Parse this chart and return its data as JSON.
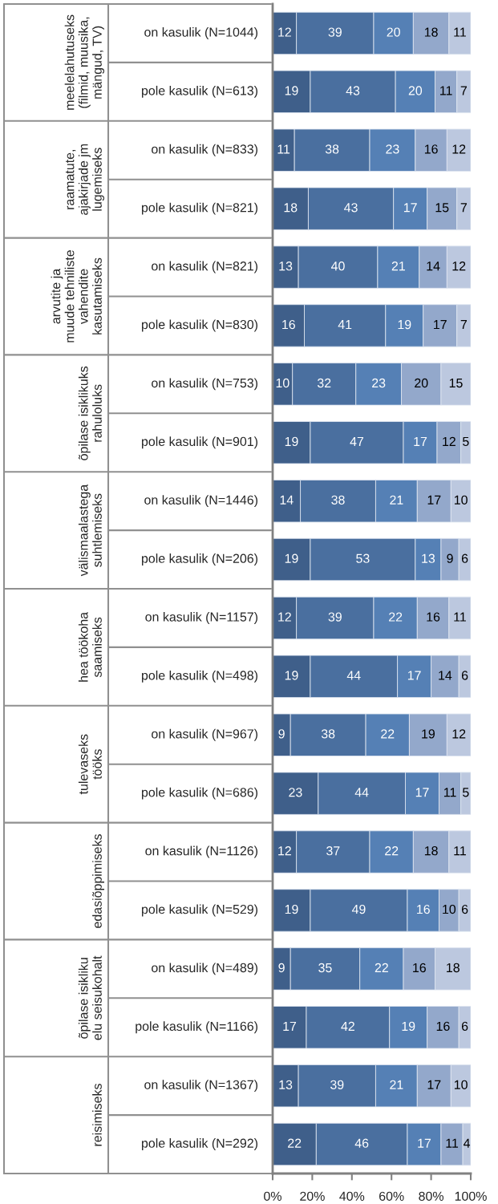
{
  "chart_data": {
    "type": "bar",
    "orientation": "horizontal",
    "stacked": true,
    "data_labels": true,
    "categories": [
      "on kasulik (N=1044)",
      "pole kasulik (N=613)",
      "on kasulik (N=833)",
      "pole kasulik (N=821)",
      "on kasulik (N=821)",
      "pole kasulik (N=830)",
      "on kasulik (N=753)",
      "pole kasulik (N=901)",
      "on kasulik (N=1446)",
      "pole kasulik (N=206)",
      "on kasulik (N=1157)",
      "pole kasulik (N=498)",
      "on kasulik (N=967)",
      "pole kasulik (N=686)",
      "on kasulik (N=1126)",
      "pole kasulik (N=529)",
      "on kasulik (N=489)",
      "pole kasulik (N=1166)",
      "on kasulik (N=1367)",
      "pole kasulik (N=292)"
    ],
    "series": [
      {
        "color": "#3f5f8a",
        "values": [
          12,
          19,
          11,
          18,
          13,
          16,
          10,
          19,
          14,
          19,
          12,
          19,
          9,
          23,
          12,
          19,
          9,
          17,
          13,
          22
        ]
      },
      {
        "color": "#4a6f9f",
        "values": [
          39,
          43,
          38,
          43,
          40,
          41,
          32,
          47,
          38,
          53,
          39,
          44,
          38,
          44,
          37,
          49,
          35,
          42,
          39,
          46
        ]
      },
      {
        "color": "#5580b5",
        "values": [
          20,
          20,
          23,
          17,
          21,
          19,
          23,
          17,
          21,
          13,
          22,
          17,
          22,
          17,
          22,
          16,
          22,
          19,
          21,
          17
        ]
      },
      {
        "color": "#93a8cb",
        "values": [
          18,
          11,
          16,
          15,
          14,
          17,
          20,
          12,
          17,
          9,
          16,
          14,
          19,
          11,
          18,
          10,
          16,
          16,
          17,
          11
        ]
      },
      {
        "color": "#bcc8df",
        "values": [
          11,
          7,
          12,
          7,
          12,
          7,
          15,
          5,
          10,
          6,
          11,
          6,
          12,
          5,
          11,
          6,
          18,
          6,
          10,
          4
        ]
      }
    ],
    "xlim": [
      0,
      100
    ],
    "xticks": [
      {
        "value": 0,
        "label": "0%"
      },
      {
        "value": 20,
        "label": "20%"
      },
      {
        "value": 40,
        "label": "40%"
      },
      {
        "value": 60,
        "label": "60%"
      },
      {
        "value": 80,
        "label": "80%"
      },
      {
        "value": 100,
        "label": "100%"
      }
    ],
    "annotations": [
      "meelelahutuseks\n(filmid, muusika,\nmängud, TV)",
      "raamatute,\najakirjade jm\nlugemiseks",
      "arvutite ja\nmuude tehniliste\nvahendite\nkasutamiseks",
      "õpilase isiklikuks\nrahuloluks",
      "välismaalastega\nsuhtlemiseks",
      "hea töökoha\nsaamiseks",
      "tulevaseks\ntööks",
      "edasiõppimiseks",
      "õpilase isikliku\nelu seisukohalt",
      "reisimiseks"
    ]
  }
}
